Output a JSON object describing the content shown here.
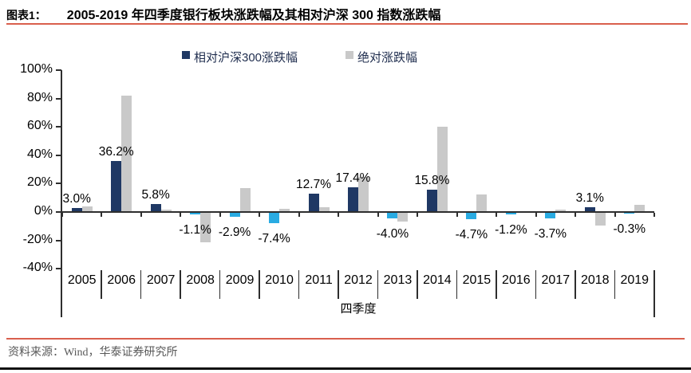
{
  "header": {
    "figure_label": "图表1：",
    "title": "2005-2019 年四季度银行板块涨跌幅及其相对沪深 300 指数涨跌幅"
  },
  "footer": {
    "source": "资料来源：Wind，华泰证券研究所"
  },
  "colors": {
    "relative_positive": "#1f3864",
    "relative_negative": "#29abe2",
    "absolute": "#c9c9c9",
    "rule_red": "#d95f4d",
    "rule_black": "#111111",
    "axis": "#2e2e2e"
  },
  "chart_data": {
    "type": "bar",
    "categories": [
      "2005",
      "2006",
      "2007",
      "2008",
      "2009",
      "2010",
      "2011",
      "2012",
      "2013",
      "2014",
      "2015",
      "2016",
      "2017",
      "2018",
      "2019"
    ],
    "series": [
      {
        "name": "相对沪深300涨跌幅",
        "values": [
          3.0,
          36.2,
          5.8,
          -1.1,
          -2.9,
          -7.4,
          12.7,
          17.4,
          -4.0,
          15.8,
          -4.7,
          -1.2,
          -3.7,
          3.1,
          -0.3
        ],
        "labels": [
          "3.0%",
          "36.2%",
          "5.8%",
          "-1.1%",
          "-2.9%",
          "-7.4%",
          "12.7%",
          "17.4%",
          "-4.0%",
          "15.8%",
          "-4.7%",
          "-1.2%",
          "-3.7%",
          "3.1%",
          "-0.3%"
        ]
      },
      {
        "name": "绝对涨跌幅",
        "values": [
          4,
          82,
          1.5,
          -21,
          17,
          2,
          3.5,
          25,
          -6,
          60,
          12.5,
          0.5,
          1.5,
          -9,
          5
        ]
      }
    ],
    "xlabel": "四季度",
    "ylim": [
      -40,
      100
    ],
    "ytick_step": 20,
    "ytick_suffix": "%",
    "legend_position": "top",
    "grid": false
  }
}
